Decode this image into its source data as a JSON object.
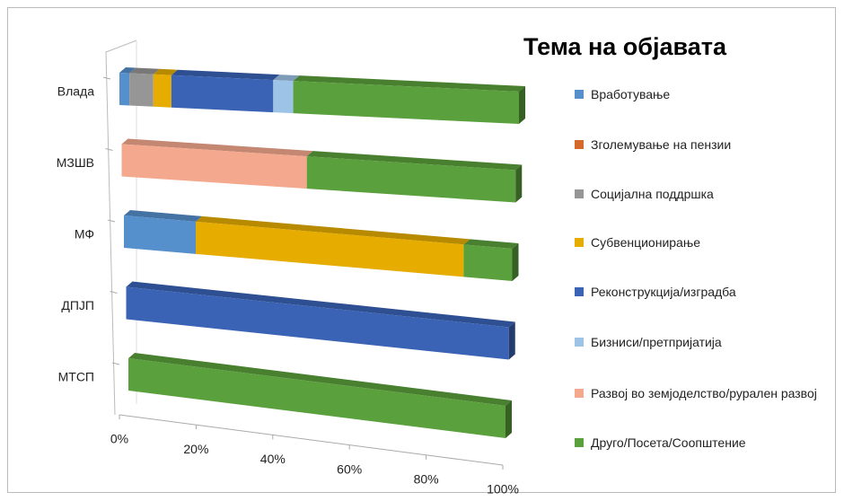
{
  "chart_data": {
    "type": "bar3d",
    "title": "Тема на објавата",
    "categories": [
      "Влада",
      "МЗШВ",
      "МФ",
      "ДПЈП",
      "МТСП"
    ],
    "series": [
      {
        "name": "Вработување",
        "color": "#5590cc",
        "values": [
          2.5,
          0,
          18.5,
          0,
          0
        ]
      },
      {
        "name": "Зголемување на пензии",
        "color": "#d4692a",
        "values": [
          0,
          0,
          0,
          0,
          0
        ]
      },
      {
        "name": "Социјална поддршка",
        "color": "#969696",
        "values": [
          6,
          0,
          0,
          0,
          0
        ]
      },
      {
        "name": "Субвенционирање",
        "color": "#e6ac00",
        "values": [
          4.5,
          0,
          69,
          0,
          0
        ]
      },
      {
        "name": "Реконструкција/изградба",
        "color": "#3a63b5",
        "values": [
          25.5,
          0,
          0,
          100,
          0
        ]
      },
      {
        "name": "Бизниси/претпријатија",
        "color": "#9dc3e6",
        "values": [
          5,
          0,
          0,
          0,
          0
        ]
      },
      {
        "name": "Развој во земјоделство/рурален развој",
        "color": "#f4a98e",
        "values": [
          0,
          47,
          0,
          0,
          0
        ]
      },
      {
        "name": "Друго/Посета/Соопштение",
        "color": "#5aa03c",
        "values": [
          56.5,
          53,
          12.5,
          0,
          100
        ]
      }
    ],
    "xlim": [
      0,
      100
    ],
    "xticks": [
      {
        "value": 0,
        "label": "0%"
      },
      {
        "value": 20,
        "label": "20%"
      },
      {
        "value": 40,
        "label": "40%"
      },
      {
        "value": 60,
        "label": "60%"
      },
      {
        "value": 80,
        "label": "80%"
      },
      {
        "value": 100,
        "label": "100%"
      }
    ]
  }
}
